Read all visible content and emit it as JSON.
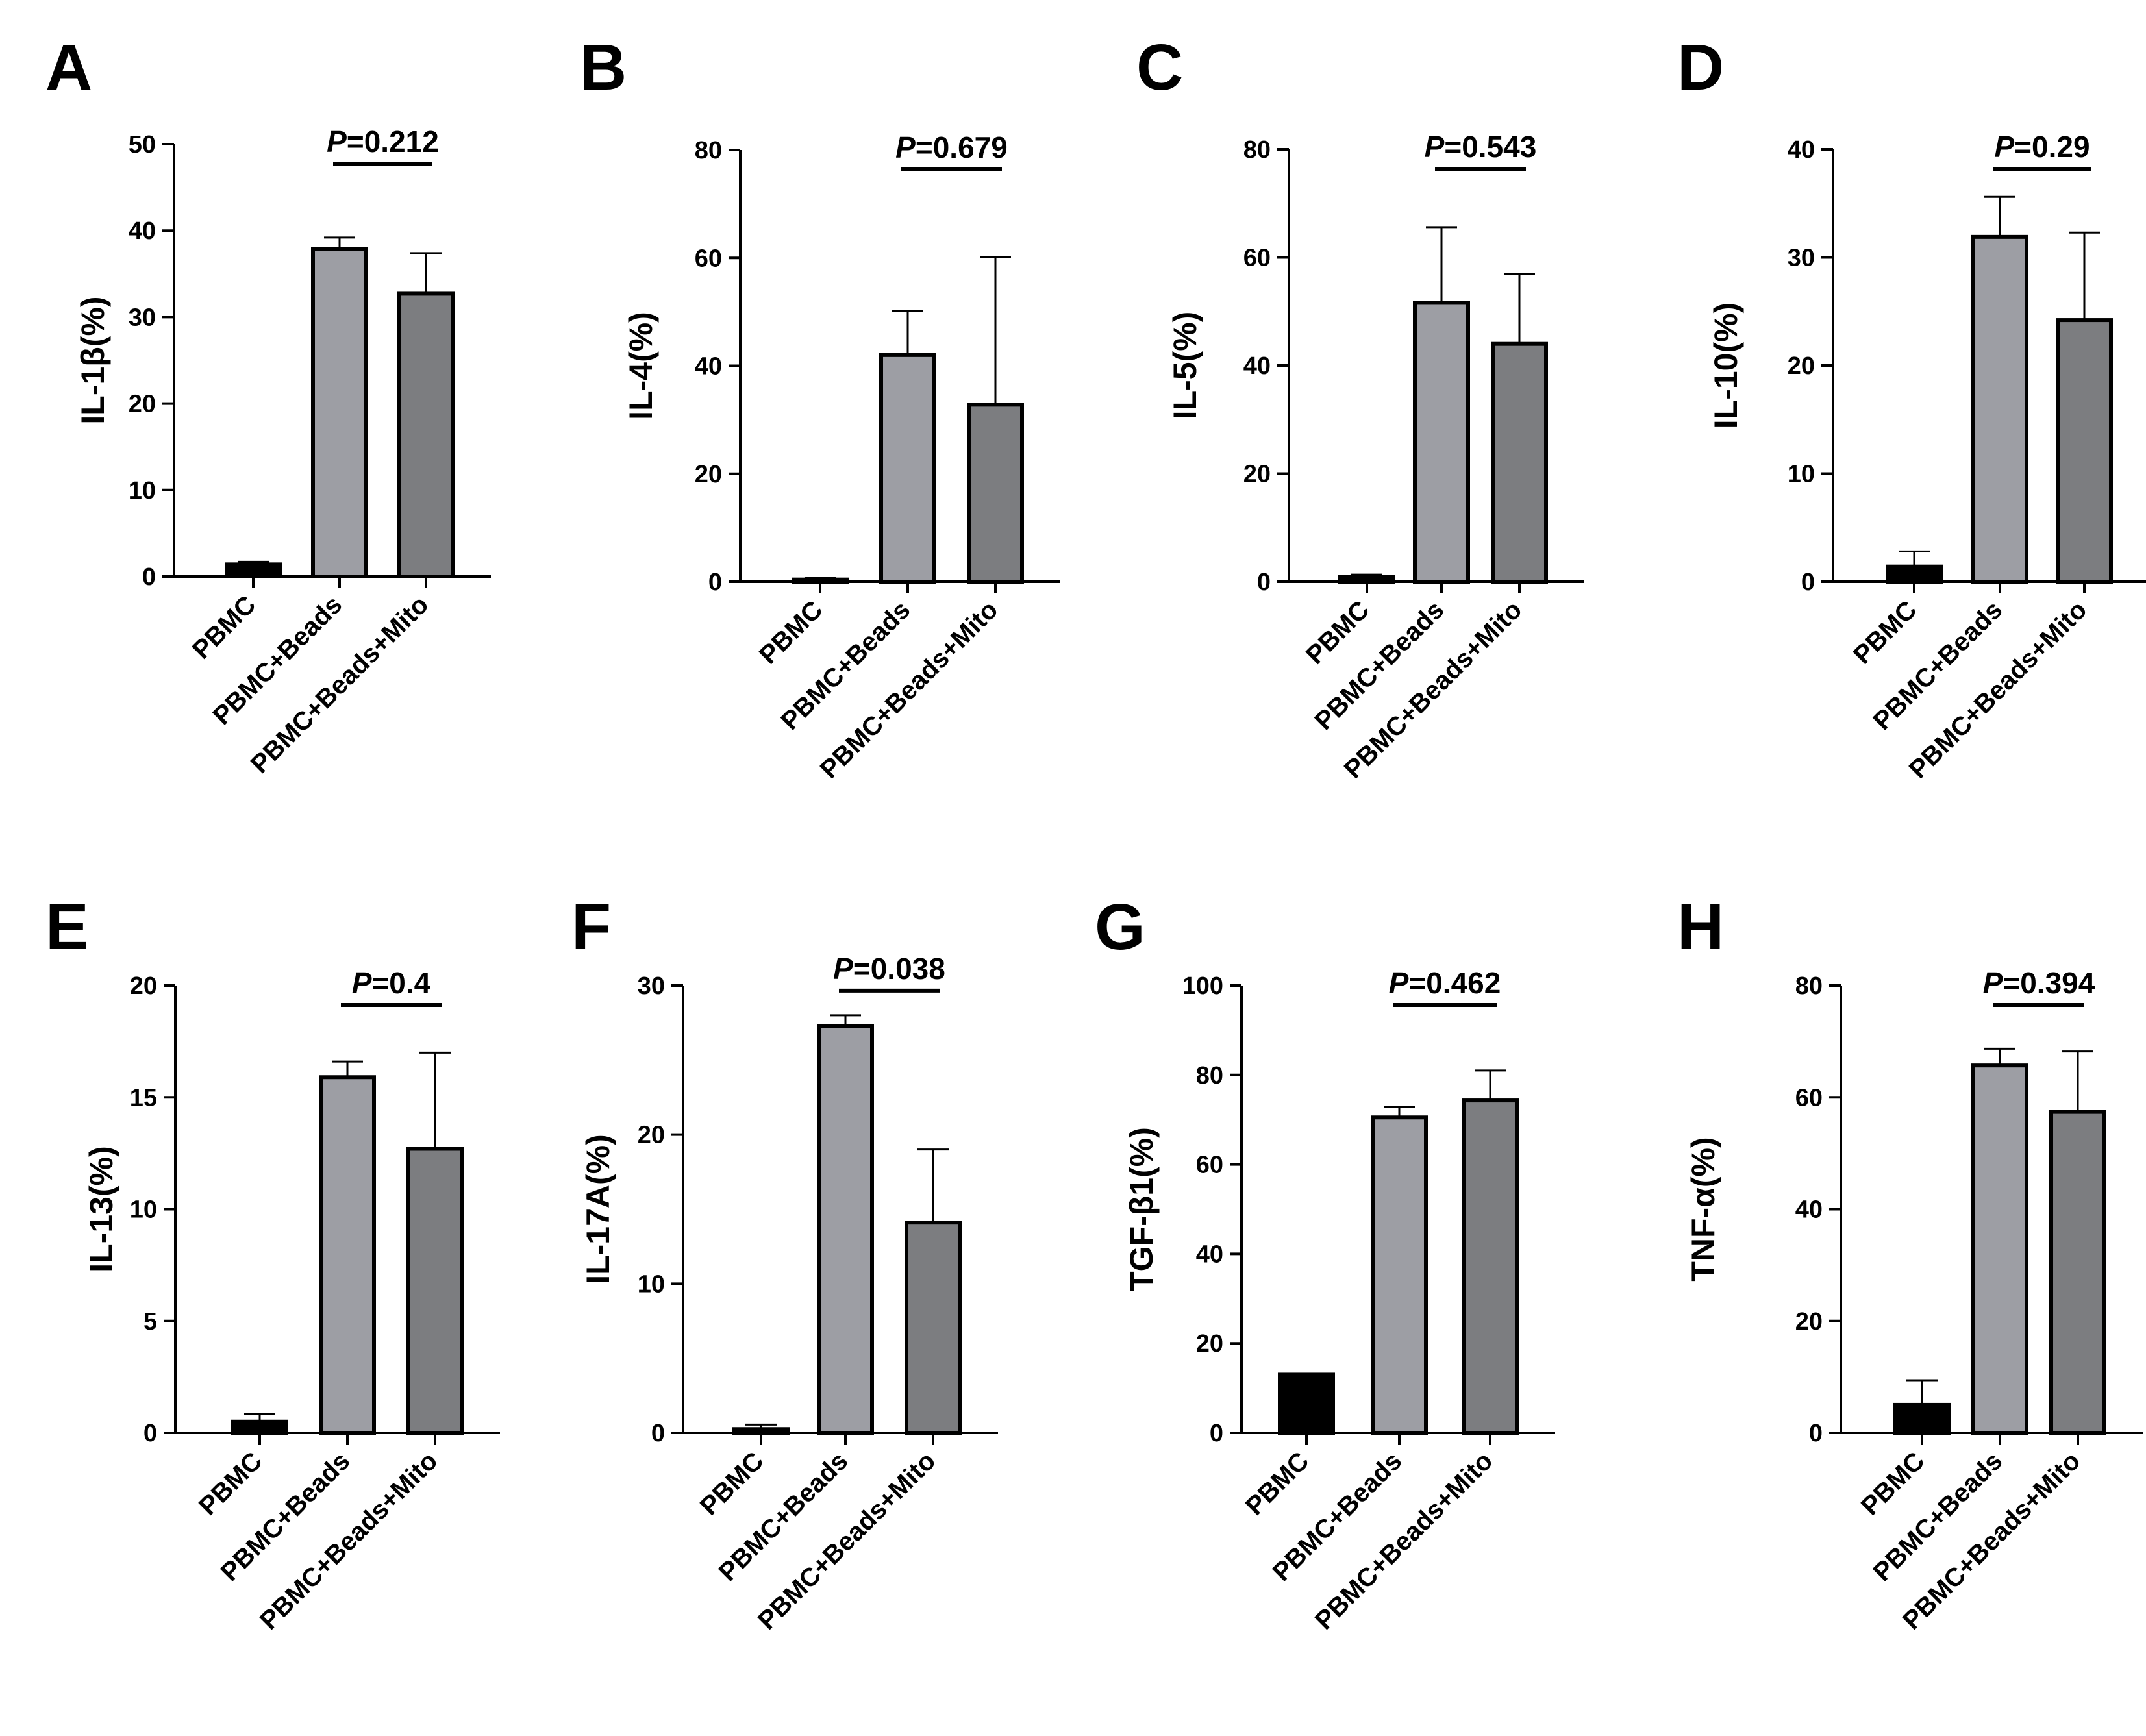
{
  "chart_data": [
    {
      "panel": "A",
      "type": "bar",
      "categories": [
        "PBMC",
        "PBMC+Beads",
        "PBMC+Beads+Mito"
      ],
      "values": [
        1.4,
        37.9,
        32.7
      ],
      "errors": [
        0.3,
        1.3,
        4.7
      ],
      "ylabel": "IL-1β(%)",
      "ylim": [
        0,
        50
      ],
      "yticks": [
        0,
        10,
        20,
        30,
        40,
        50
      ],
      "annotation": {
        "prefix": "P",
        "text": "=0.212",
        "between": [
          1,
          2
        ]
      },
      "colors": [
        "#000000",
        "#9d9ea4",
        "#7c7d80"
      ]
    },
    {
      "panel": "B",
      "type": "bar",
      "categories": [
        "PBMC",
        "PBMC+Beads",
        "PBMC+Beads+Mito"
      ],
      "values": [
        0.4,
        42,
        32.8
      ],
      "errors": [
        0.3,
        8.2,
        27.4
      ],
      "ylabel": "IL-4(%)",
      "ylim": [
        0,
        80
      ],
      "yticks": [
        0,
        20,
        40,
        60,
        80
      ],
      "annotation": {
        "prefix": "P",
        "text": "=0.679",
        "between": [
          1,
          2
        ]
      },
      "colors": [
        "#000000",
        "#9d9ea4",
        "#7c7d80"
      ]
    },
    {
      "panel": "C",
      "type": "bar",
      "categories": [
        "PBMC",
        "PBMC+Beads",
        "PBMC+Beads+Mito"
      ],
      "values": [
        0.9,
        51.6,
        44
      ],
      "errors": [
        0.4,
        14,
        13
      ],
      "ylabel": "IL-5(%)",
      "ylim": [
        0,
        80
      ],
      "yticks": [
        0,
        20,
        40,
        60,
        80
      ],
      "annotation": {
        "prefix": "P",
        "text": "=0.543",
        "between": [
          1,
          2
        ]
      },
      "colors": [
        "#000000",
        "#9d9ea4",
        "#7c7d80"
      ]
    },
    {
      "panel": "D",
      "type": "bar",
      "categories": [
        "PBMC",
        "PBMC+Beads",
        "PBMC+Beads+Mito"
      ],
      "values": [
        1.4,
        31.9,
        24.2
      ],
      "errors": [
        1.4,
        3.7,
        8.1
      ],
      "ylabel": "IL-10(%)",
      "ylim": [
        0,
        40
      ],
      "yticks": [
        0,
        10,
        20,
        30,
        40
      ],
      "annotation": {
        "prefix": "P",
        "text": "=0.29",
        "between": [
          1,
          2
        ]
      },
      "colors": [
        "#000000",
        "#9d9ea4",
        "#7c7d80"
      ]
    },
    {
      "panel": "E",
      "type": "bar",
      "categories": [
        "PBMC",
        "PBMC+Beads",
        "PBMC+Beads+Mito"
      ],
      "values": [
        0.5,
        15.9,
        12.7
      ],
      "errors": [
        0.35,
        0.7,
        4.3
      ],
      "ylabel": "IL-13(%)",
      "ylim": [
        0,
        20
      ],
      "yticks": [
        0,
        5,
        10,
        15,
        20
      ],
      "annotation": {
        "prefix": "P",
        "text": "=0.4",
        "between": [
          1,
          2
        ]
      },
      "colors": [
        "#000000",
        "#9d9ea4",
        "#7c7d80"
      ]
    },
    {
      "panel": "F",
      "type": "bar",
      "categories": [
        "PBMC",
        "PBMC+Beads",
        "PBMC+Beads+Mito"
      ],
      "values": [
        0.25,
        27.3,
        14.1
      ],
      "errors": [
        0.3,
        0.7,
        4.9
      ],
      "ylabel": "IL-17A(%)",
      "ylim": [
        0,
        30
      ],
      "yticks": [
        0,
        10,
        20,
        30
      ],
      "annotation": {
        "prefix": "P",
        "text": "=0.038",
        "between": [
          1,
          2
        ]
      },
      "colors": [
        "#000000",
        "#9d9ea4",
        "#7c7d80"
      ]
    },
    {
      "panel": "G",
      "type": "bar",
      "categories": [
        "PBMC",
        "PBMC+Beads",
        "PBMC+Beads+Mito"
      ],
      "values": [
        13,
        70.5,
        74.3
      ],
      "errors": [
        0,
        2.3,
        6.7
      ],
      "ylabel": "TGF-β1(%)",
      "ylim": [
        0,
        100
      ],
      "yticks": [
        0,
        20,
        40,
        60,
        80,
        100
      ],
      "annotation": {
        "prefix": "P",
        "text": "=0.462",
        "between": [
          1,
          2
        ]
      },
      "colors": [
        "#000000",
        "#9d9ea4",
        "#7c7d80"
      ]
    },
    {
      "panel": "H",
      "type": "bar",
      "categories": [
        "PBMC",
        "PBMC+Beads",
        "PBMC+Beads+Mito"
      ],
      "values": [
        5,
        65.7,
        57.4
      ],
      "errors": [
        4.4,
        3,
        10.8
      ],
      "ylabel": "TNF-α(%)",
      "ylim": [
        0,
        80
      ],
      "yticks": [
        0,
        20,
        40,
        60,
        80
      ],
      "annotation": {
        "prefix": "P",
        "text": "=0.394",
        "between": [
          1,
          2
        ]
      },
      "colors": [
        "#000000",
        "#9d9ea4",
        "#7c7d80"
      ]
    }
  ]
}
